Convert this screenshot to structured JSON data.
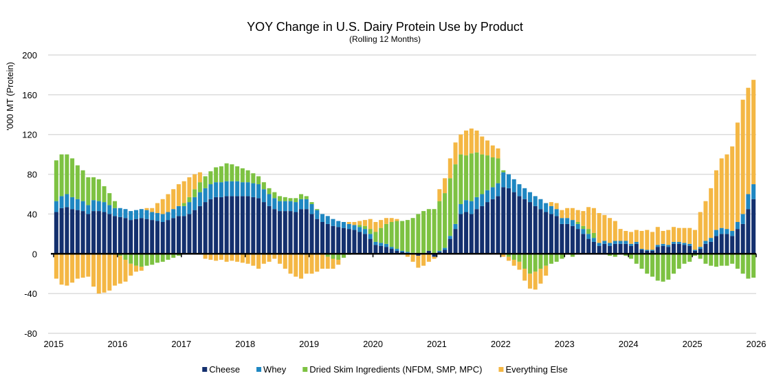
{
  "chart_data": {
    "type": "bar",
    "stacked": true,
    "title": "YOY Change in U.S. Dairy Protein Use by Product",
    "subtitle": "(Rolling 12 Months)",
    "ylabel": "'000 MT (Protein)",
    "xlabel": "",
    "ylim": [
      -80,
      200
    ],
    "yticks": [
      "-80",
      "-40",
      "0",
      "40",
      "80",
      "120",
      "160",
      "200"
    ],
    "xticks": [
      "2015",
      "2016",
      "2017",
      "2018",
      "2019",
      "2020",
      "2021",
      "2022",
      "2023",
      "2024",
      "2025",
      "2026"
    ],
    "x_start": "2015-01",
    "x_frequency": "monthly",
    "grid": true,
    "legend_position": "bottom",
    "series": [
      {
        "name": "Cheese",
        "color": "#14306e",
        "values": [
          42,
          46,
          47,
          45,
          44,
          43,
          40,
          43,
          43,
          42,
          40,
          38,
          37,
          36,
          34,
          35,
          36,
          35,
          34,
          33,
          32,
          34,
          36,
          38,
          38,
          40,
          44,
          48,
          52,
          55,
          57,
          57,
          58,
          58,
          58,
          58,
          58,
          57,
          56,
          52,
          48,
          45,
          43,
          43,
          43,
          42,
          45,
          45,
          40,
          35,
          32,
          30,
          28,
          27,
          26,
          25,
          24,
          22,
          20,
          15,
          9,
          8,
          7,
          5,
          3,
          2,
          1,
          0,
          -2,
          0,
          3,
          -3,
          2,
          4,
          15,
          25,
          40,
          42,
          40,
          45,
          48,
          52,
          55,
          58,
          67,
          66,
          62,
          58,
          55,
          52,
          48,
          45,
          42,
          40,
          38,
          30,
          30,
          28,
          25,
          20,
          15,
          12,
          8,
          10,
          8,
          10,
          10,
          10,
          8,
          10,
          4,
          3,
          3,
          7,
          8,
          7,
          10,
          10,
          9,
          8,
          3,
          5,
          10,
          12,
          18,
          20,
          20,
          18,
          25,
          30,
          45,
          55
        ]
      },
      {
        "name": "Whey",
        "color": "#1f87c2",
        "values": [
          11,
          12,
          13,
          12,
          11,
          10,
          9,
          11,
          10,
          10,
          9,
          8,
          9,
          9,
          9,
          9,
          9,
          9,
          8,
          8,
          8,
          8,
          9,
          10,
          10,
          12,
          13,
          14,
          14,
          15,
          15,
          15,
          15,
          15,
          15,
          14,
          14,
          14,
          14,
          13,
          12,
          11,
          10,
          10,
          10,
          10,
          10,
          10,
          10,
          9,
          8,
          8,
          7,
          6,
          6,
          5,
          5,
          5,
          5,
          5,
          3,
          3,
          3,
          2,
          2,
          1,
          1,
          1,
          0,
          0,
          0,
          0,
          1,
          2,
          3,
          5,
          10,
          12,
          13,
          12,
          12,
          12,
          12,
          13,
          15,
          14,
          13,
          12,
          11,
          10,
          10,
          10,
          9,
          8,
          7,
          6,
          6,
          6,
          5,
          5,
          5,
          4,
          3,
          3,
          3,
          3,
          3,
          3,
          2,
          2,
          1,
          1,
          1,
          2,
          2,
          2,
          2,
          2,
          2,
          2,
          1,
          2,
          3,
          4,
          6,
          6,
          5,
          5,
          7,
          10,
          15,
          15
        ]
      },
      {
        "name": "Dried Skim Ingredients (NFDM, SMP, MPC)",
        "color": "#7dc242",
        "values": [
          41,
          42,
          40,
          39,
          34,
          31,
          28,
          23,
          22,
          16,
          12,
          7,
          -2,
          -6,
          -10,
          -12,
          -13,
          -12,
          -11,
          -9,
          -8,
          -6,
          -4,
          -2,
          3,
          5,
          8,
          10,
          12,
          13,
          15,
          16,
          18,
          17,
          15,
          14,
          12,
          10,
          8,
          7,
          6,
          6,
          5,
          4,
          3,
          4,
          5,
          3,
          2,
          1,
          0,
          -3,
          -5,
          -6,
          -4,
          -1,
          0,
          2,
          3,
          5,
          10,
          15,
          20,
          25,
          28,
          30,
          32,
          35,
          40,
          43,
          42,
          45,
          50,
          55,
          58,
          60,
          50,
          45,
          48,
          45,
          40,
          35,
          30,
          25,
          2,
          -3,
          -6,
          -8,
          -15,
          -20,
          -18,
          -15,
          -12,
          -10,
          -8,
          -5,
          0,
          -3,
          2,
          3,
          5,
          5,
          0,
          0,
          -2,
          -3,
          0,
          -2,
          -5,
          -10,
          -15,
          -20,
          -23,
          -27,
          -28,
          -26,
          -20,
          -15,
          -10,
          -8,
          -2,
          -5,
          -10,
          -12,
          -13,
          -12,
          -12,
          -10,
          -15,
          -20,
          -25,
          -24
        ]
      },
      {
        "name": "Everything Else",
        "color": "#f4b744",
        "values": [
          -25,
          -31,
          -32,
          -29,
          -25,
          -24,
          -23,
          -33,
          -40,
          -39,
          -37,
          -32,
          -28,
          -22,
          -12,
          -6,
          -4,
          2,
          4,
          10,
          15,
          18,
          20,
          22,
          22,
          20,
          15,
          10,
          -5,
          -6,
          -7,
          -6,
          -8,
          -7,
          -8,
          -9,
          -10,
          -12,
          -15,
          -10,
          -8,
          -5,
          -10,
          -15,
          -20,
          -23,
          -25,
          -20,
          -20,
          -18,
          -15,
          -12,
          -10,
          -5,
          0,
          2,
          3,
          4,
          6,
          10,
          10,
          8,
          6,
          4,
          2,
          0,
          -3,
          -8,
          -12,
          -12,
          -8,
          -2,
          12,
          15,
          20,
          22,
          20,
          25,
          25,
          22,
          18,
          15,
          12,
          10,
          -3,
          -4,
          -6,
          -8,
          -12,
          -15,
          -18,
          -15,
          -10,
          4,
          6,
          8,
          10,
          12,
          12,
          15,
          22,
          25,
          30,
          26,
          25,
          20,
          12,
          10,
          12,
          12,
          18,
          20,
          18,
          18,
          13,
          15,
          15,
          14,
          15,
          16,
          20,
          35,
          40,
          50,
          60,
          70,
          75,
          85,
          100,
          115,
          107,
          105
        ]
      }
    ]
  }
}
